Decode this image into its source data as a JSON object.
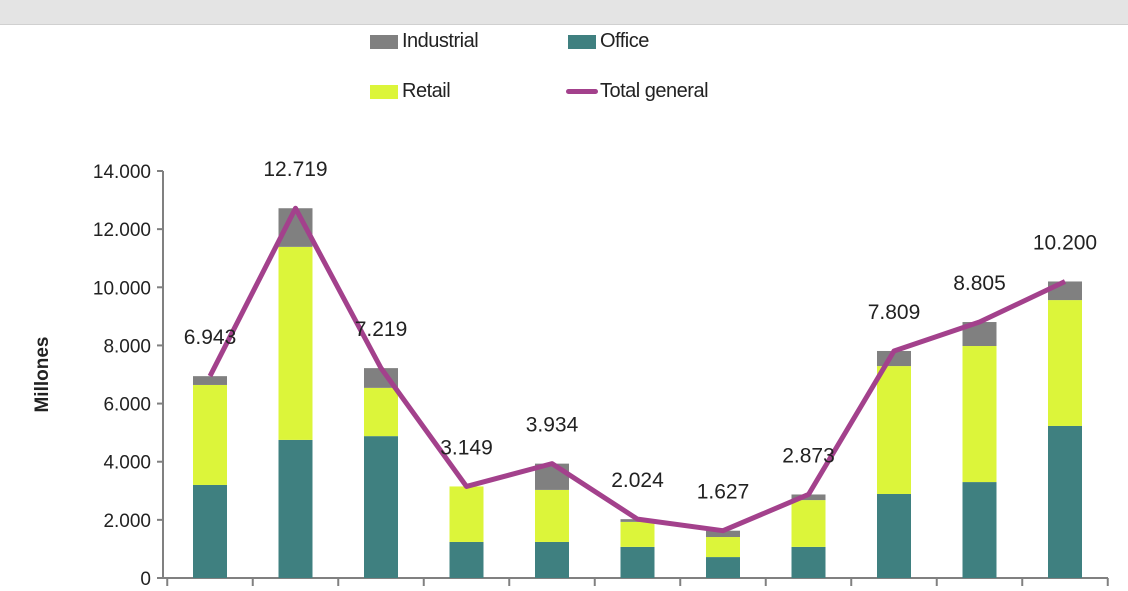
{
  "chart_data": {
    "type": "bar",
    "stacked": true,
    "ylabel": "Millones",
    "ylim": [
      0,
      14000
    ],
    "yticks": [
      "0",
      "2.000",
      "4.000",
      "6.000",
      "8.000",
      "10.000",
      "12.000",
      "14.000"
    ],
    "ytick_values": [
      0,
      2000,
      4000,
      6000,
      8000,
      10000,
      12000,
      14000
    ],
    "grid": false,
    "legend_position": "top",
    "series": [
      {
        "name": "Office",
        "color": "#3f8080",
        "values": [
          3200,
          4750,
          4880,
          1240,
          1240,
          1070,
          720,
          1070,
          2890,
          3300,
          5230
        ]
      },
      {
        "name": "Retail",
        "color": "#dcf53a",
        "values": [
          3440,
          6640,
          1660,
          1909,
          1790,
          860,
          690,
          1610,
          4400,
          4680,
          4330
        ]
      },
      {
        "name": "Industrial",
        "color": "#808080",
        "values": [
          303,
          1329,
          679,
          0,
          904,
          94,
          217,
          193,
          519,
          825,
          640
        ]
      },
      {
        "name": "Total general",
        "type": "line",
        "color": "#a3418c",
        "values": [
          6943,
          12719,
          7219,
          3149,
          3934,
          2024,
          1627,
          2873,
          7809,
          8805,
          10200
        ]
      }
    ],
    "data_labels": [
      "6.943",
      "12.719",
      "7.219",
      "3.149",
      "3.934",
      "2.024",
      "1.627",
      "2.873",
      "7.809",
      "8.805",
      "10.200"
    ]
  },
  "legend": [
    {
      "label": "Industrial",
      "color": "#808080"
    },
    {
      "label": "Office",
      "color": "#3f8080"
    },
    {
      "label": "Retail",
      "color": "#dcf53a"
    },
    {
      "label": "Total general",
      "color": "#a3418c"
    }
  ]
}
